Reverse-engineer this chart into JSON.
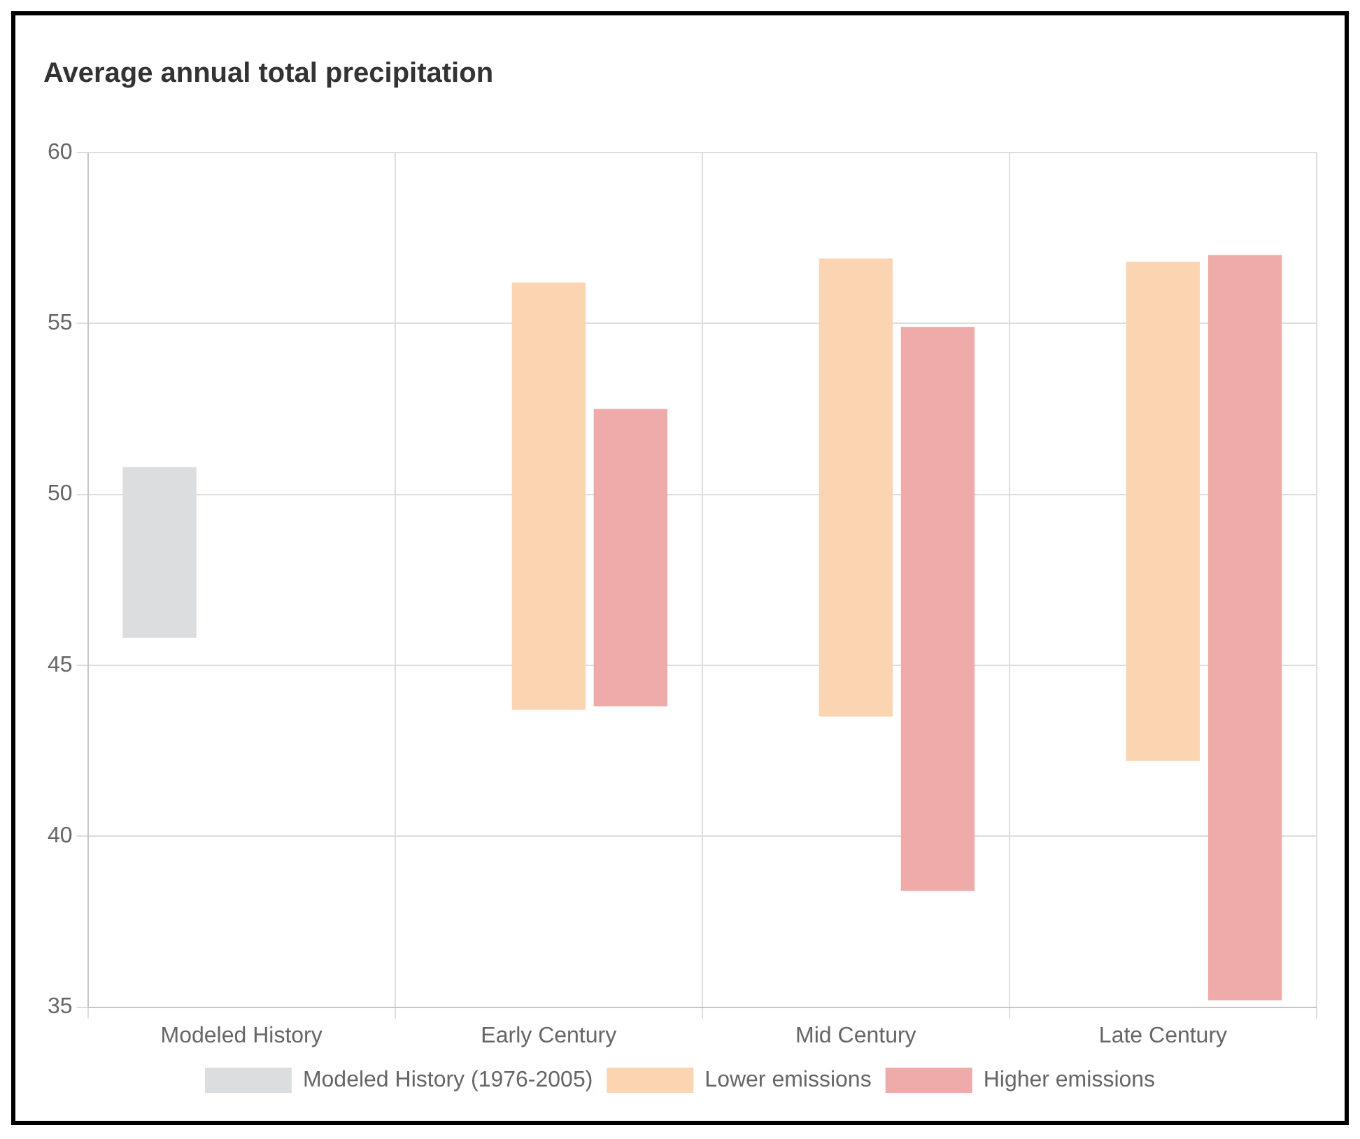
{
  "chart_data": {
    "type": "bar",
    "title": "Average annual total precipitation",
    "categories": [
      "Modeled History",
      "Early Century",
      "Mid Century",
      "Late Century"
    ],
    "series": [
      {
        "name": "Modeled History (1976-2005)",
        "color": "#dcdddf",
        "base": [
          45.8,
          null,
          null,
          null
        ],
        "values": [
          5.0,
          null,
          null,
          null
        ]
      },
      {
        "name": "Lower emissions",
        "color": "#fbd4b2",
        "base": [
          null,
          43.7,
          43.5,
          42.2
        ],
        "values": [
          null,
          12.5,
          13.4,
          14.6
        ]
      },
      {
        "name": "Higher emissions",
        "color": "#eeabaa",
        "base": [
          null,
          43.8,
          38.4,
          35.2
        ],
        "values": [
          null,
          8.7,
          16.5,
          21.8
        ]
      }
    ],
    "ylim": [
      35,
      60
    ],
    "yticks": [
      35,
      40,
      45,
      50,
      55,
      60
    ],
    "grid": true,
    "legend": "bottom"
  }
}
